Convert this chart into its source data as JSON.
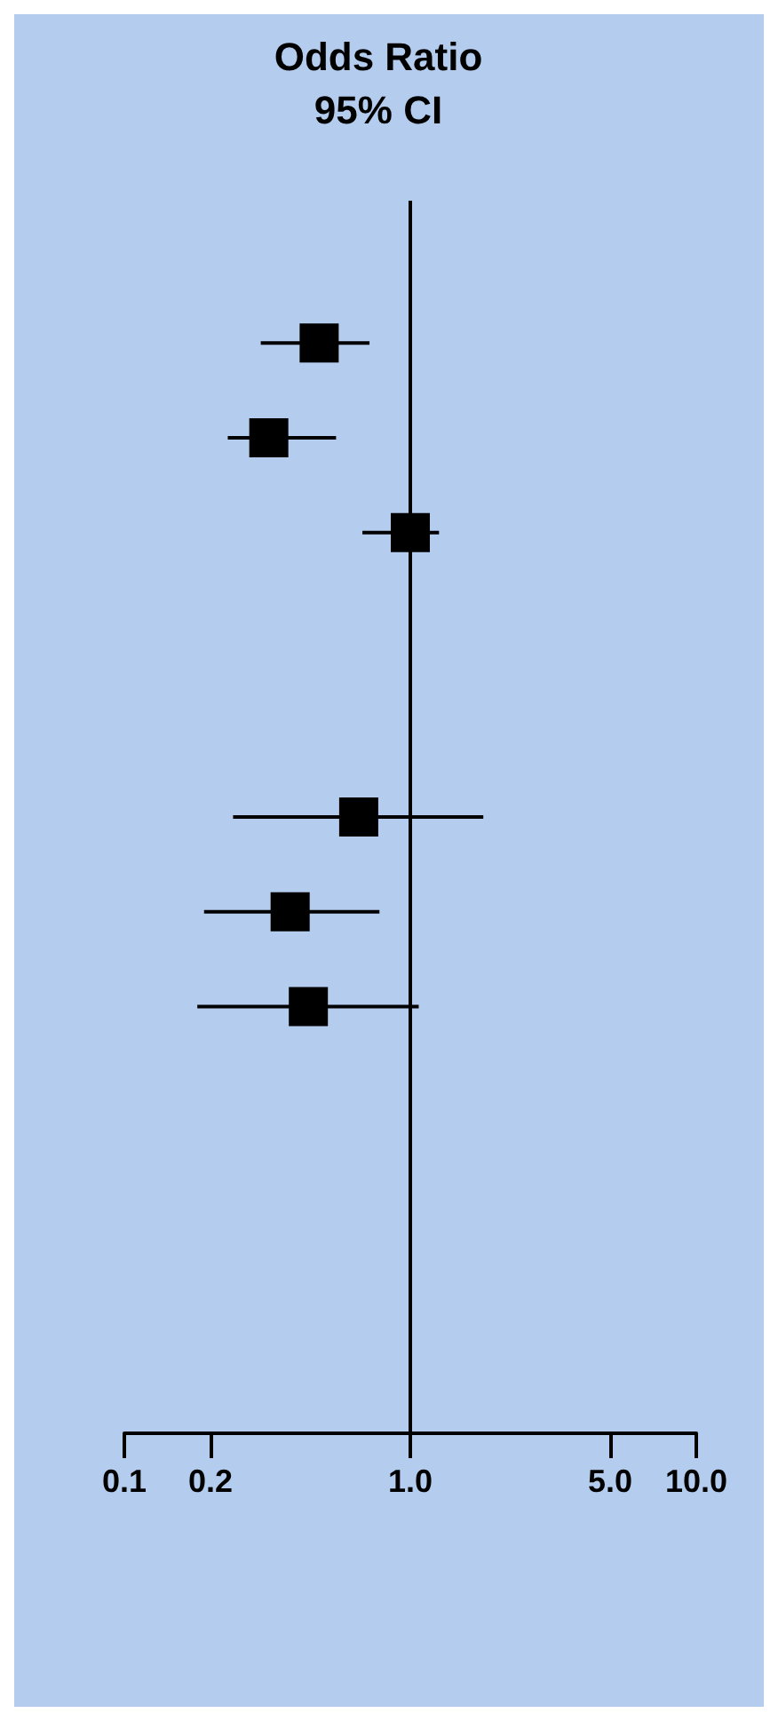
{
  "chart_data": {
    "type": "scatter",
    "title": "Odds Ratio",
    "subtitle": "95% CI",
    "orientation": "horizontal",
    "categories": [
      null,
      null,
      null,
      null,
      null,
      null,
      null,
      null,
      null,
      null,
      null,
      null,
      null
    ],
    "values": [
      null,
      0.48,
      0.32,
      1.0,
      null,
      null,
      0.66,
      0.38,
      0.44,
      null,
      null,
      null,
      null
    ],
    "errors": [
      null,
      [
        0.3,
        0.72
      ],
      [
        0.23,
        0.55
      ],
      [
        0.68,
        1.26
      ],
      null,
      null,
      [
        0.24,
        1.8
      ],
      [
        0.19,
        0.78
      ],
      [
        0.18,
        1.07
      ],
      null,
      null,
      null,
      null
    ],
    "color": "#000000",
    "marker": "square",
    "log": "x",
    "xlim": [
      0.1,
      10
    ],
    "xticks": [
      0.1,
      0.2,
      {
        "value": 1,
        "label": "1.0"
      },
      {
        "value": 5,
        "label": "5.0"
      },
      {
        "value": 10,
        "label": "10.0"
      }
    ],
    "ref_lines": [
      {
        "axis": "x",
        "value": 1,
        "color": "#000000"
      }
    ],
    "grid": false,
    "tick_labels": "x"
  }
}
